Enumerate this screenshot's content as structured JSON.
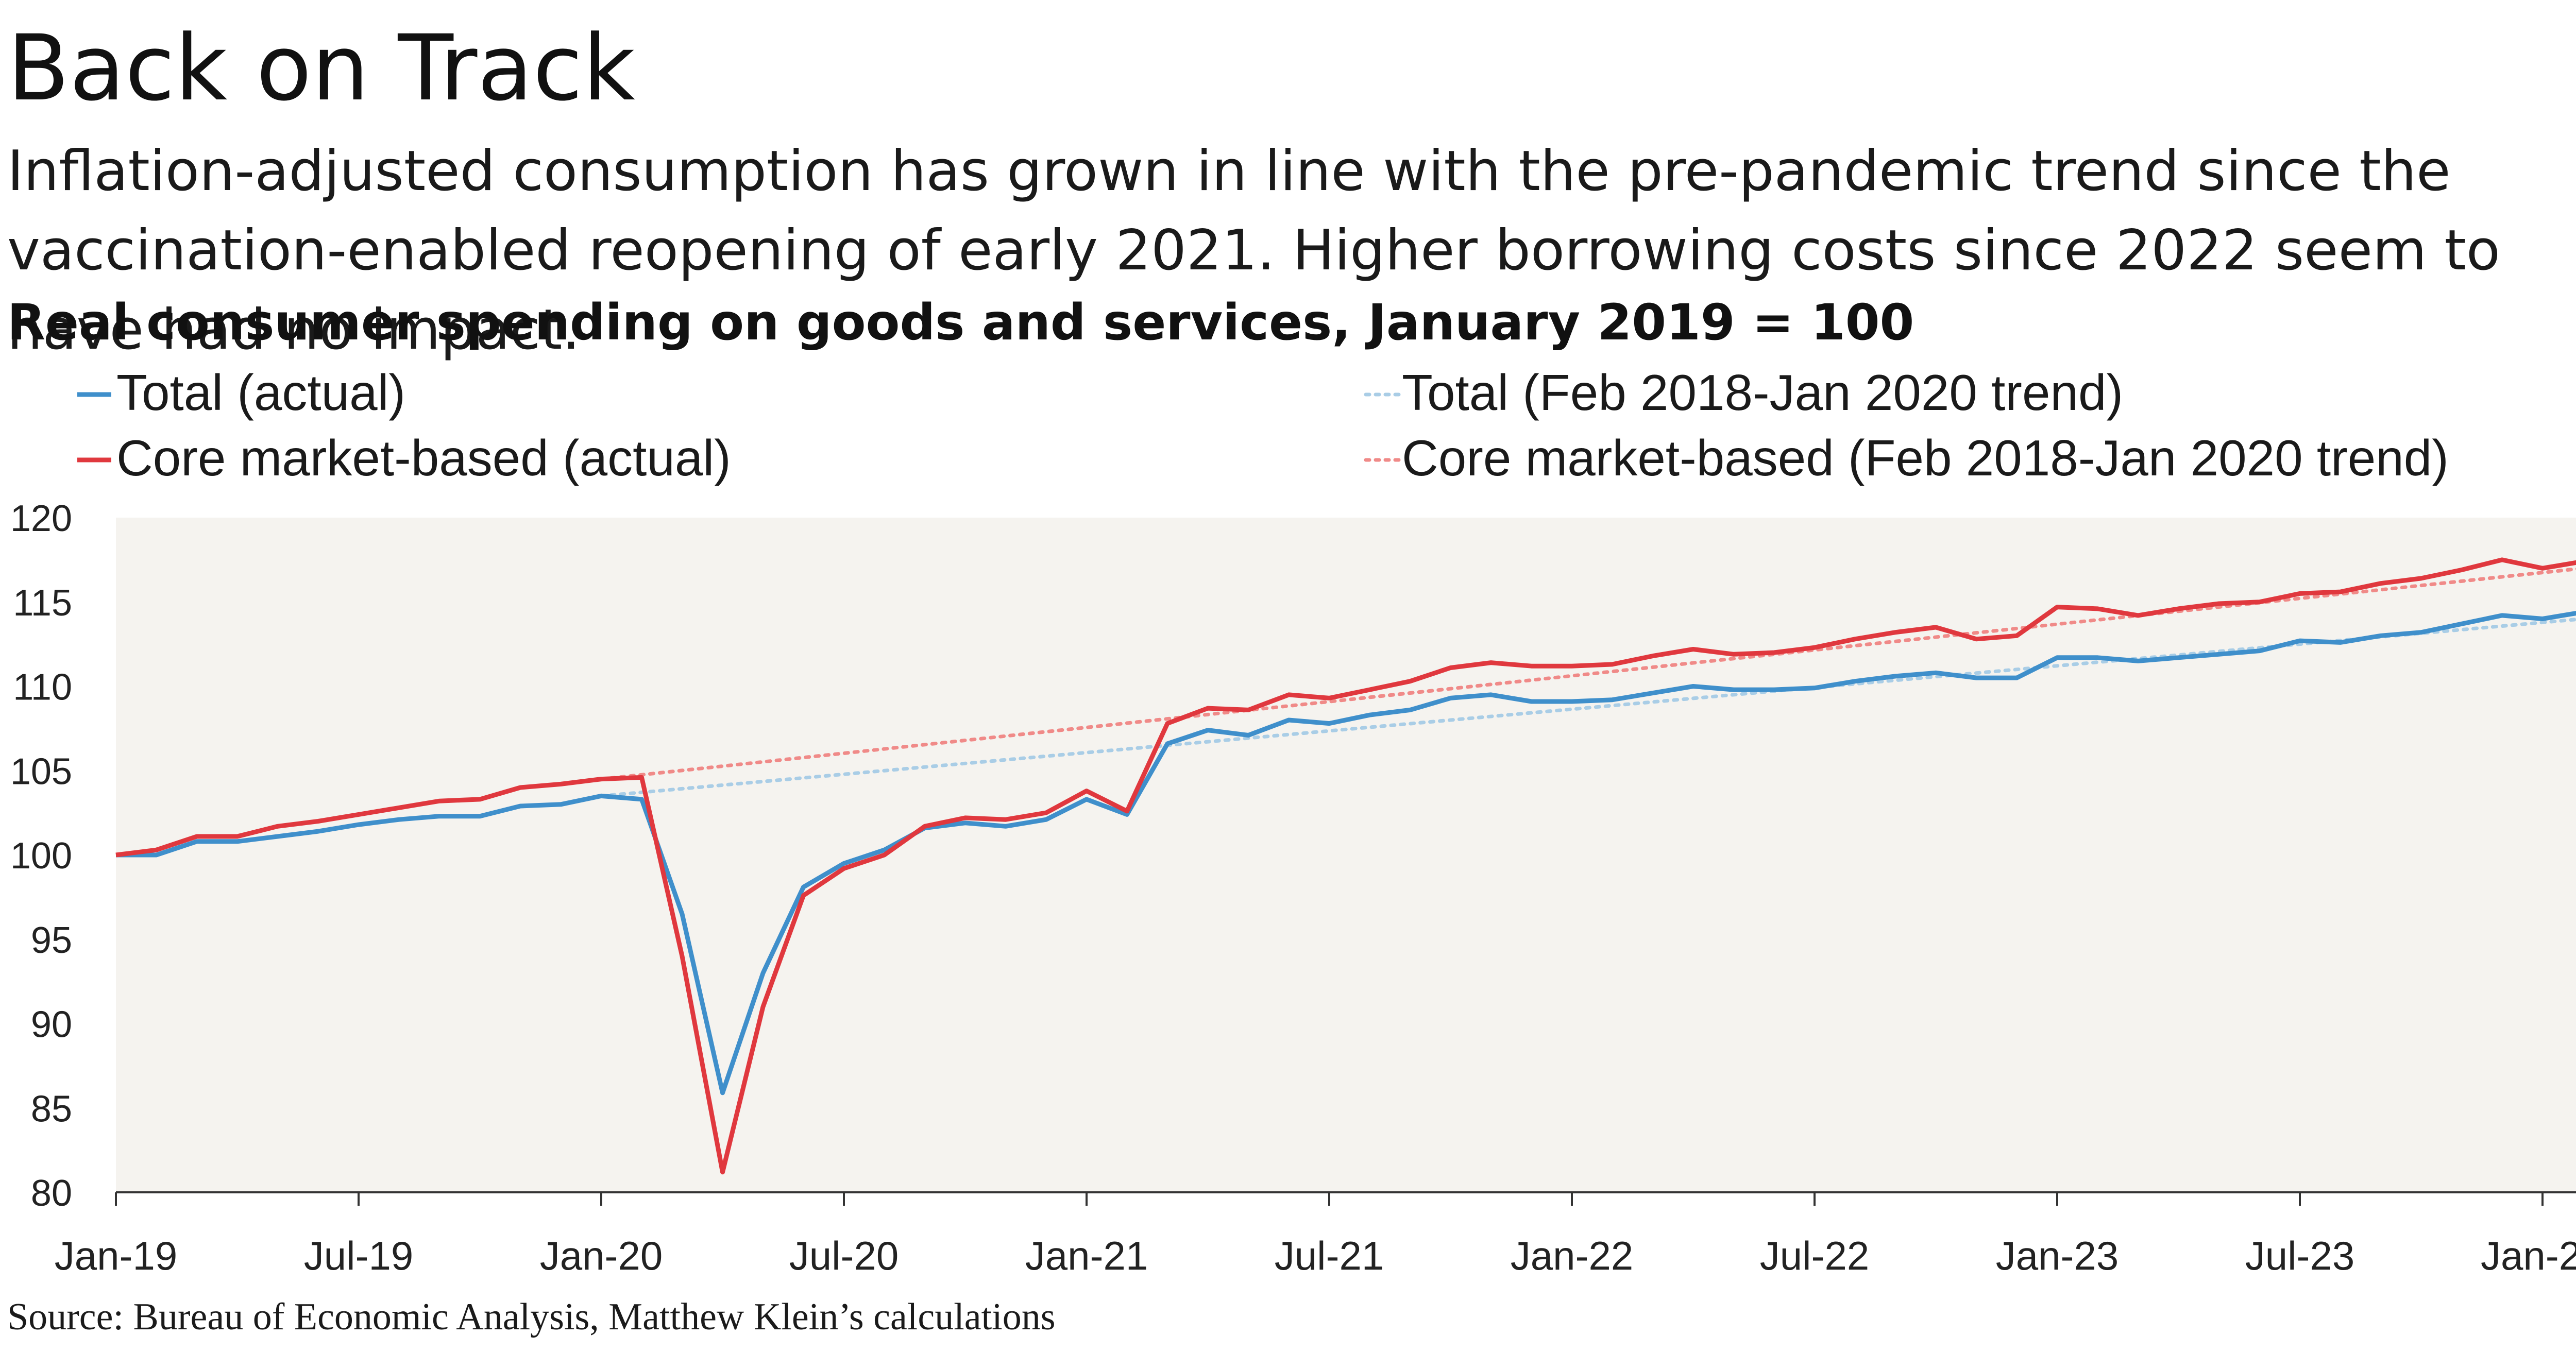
{
  "title": "Back on Track",
  "subtitle": "Inflation-adjusted consumption has grown in line with the pre-pandemic trend since the vaccination-enabled reopening of early 2021. Higher borrowing costs since 2022 seem to have had no impact.",
  "source": "Source: Bureau of Economic Analysis, Matthew Klein’s calculations",
  "colors": {
    "total": "#3f8fcb",
    "core": "#e0383e",
    "total_trend": "#a9cde6",
    "core_trend": "#f08a88",
    "plot_bg": "#f5f3ef"
  },
  "chart_data": {
    "type": "line",
    "title": "Real consumer spending on goods and services, January 2019 = 100",
    "xlabel": "",
    "ylabel": "",
    "ylim": [
      80,
      120
    ],
    "yticks": [
      "120",
      "115",
      "110",
      "105",
      "100",
      "95",
      "90",
      "85",
      "80"
    ],
    "xticks": [
      "Jan-19",
      "Jul-19",
      "Jan-20",
      "Jul-20",
      "Jan-21",
      "Jul-21",
      "Jan-22",
      "Jul-22",
      "Jan-23",
      "Jul-23",
      "Jan-2"
    ],
    "x_start": "2019-01",
    "grid": false,
    "legend_position": "top",
    "series": [
      {
        "name": "Total (actual)",
        "style": "solid",
        "color_key": "total",
        "values": [
          100.0,
          100.0,
          100.8,
          100.8,
          101.1,
          101.4,
          101.8,
          102.1,
          102.3,
          102.3,
          102.9,
          103.0,
          103.5,
          103.3,
          96.5,
          85.9,
          93.0,
          98.1,
          99.5,
          100.3,
          101.6,
          101.9,
          101.7,
          102.1,
          103.3,
          102.4,
          106.6,
          107.4,
          107.1,
          108.0,
          107.8,
          108.3,
          108.6,
          109.3,
          109.5,
          109.1,
          109.1,
          109.2,
          109.6,
          110.0,
          109.8,
          109.8,
          109.9,
          110.3,
          110.6,
          110.8,
          110.5,
          110.5,
          111.7,
          111.7,
          111.5,
          111.7,
          111.9,
          112.1,
          112.7,
          112.6,
          113.0,
          113.2,
          113.7,
          114.2,
          114.0,
          114.4
        ]
      },
      {
        "name": "Core market-based (actual)",
        "style": "solid",
        "color_key": "core",
        "values": [
          100.0,
          100.3,
          101.1,
          101.1,
          101.7,
          102.0,
          102.4,
          102.8,
          103.2,
          103.3,
          104.0,
          104.2,
          104.5,
          104.6,
          94.0,
          81.2,
          91.0,
          97.6,
          99.2,
          100.0,
          101.7,
          102.2,
          102.1,
          102.5,
          103.8,
          102.6,
          107.8,
          108.7,
          108.6,
          109.5,
          109.3,
          109.8,
          110.3,
          111.1,
          111.4,
          111.2,
          111.2,
          111.3,
          111.8,
          112.2,
          111.9,
          112.0,
          112.3,
          112.8,
          113.2,
          113.5,
          112.8,
          113.0,
          114.7,
          114.6,
          114.2,
          114.6,
          114.9,
          115.0,
          115.5,
          115.6,
          116.1,
          116.4,
          116.9,
          117.5,
          117.0,
          117.4
        ]
      },
      {
        "name": "Total (Feb 2018-Jan 2020 trend)",
        "style": "dotted",
        "color_key": "total_trend",
        "start_index": 12,
        "start_value": 103.5,
        "end_index": 61,
        "end_value": 114.0
      },
      {
        "name": "Core market-based (Feb 2018-Jan 2020 trend)",
        "style": "dotted",
        "color_key": "core_trend",
        "start_index": 12,
        "start_value": 104.5,
        "end_index": 61,
        "end_value": 117.0
      }
    ]
  }
}
